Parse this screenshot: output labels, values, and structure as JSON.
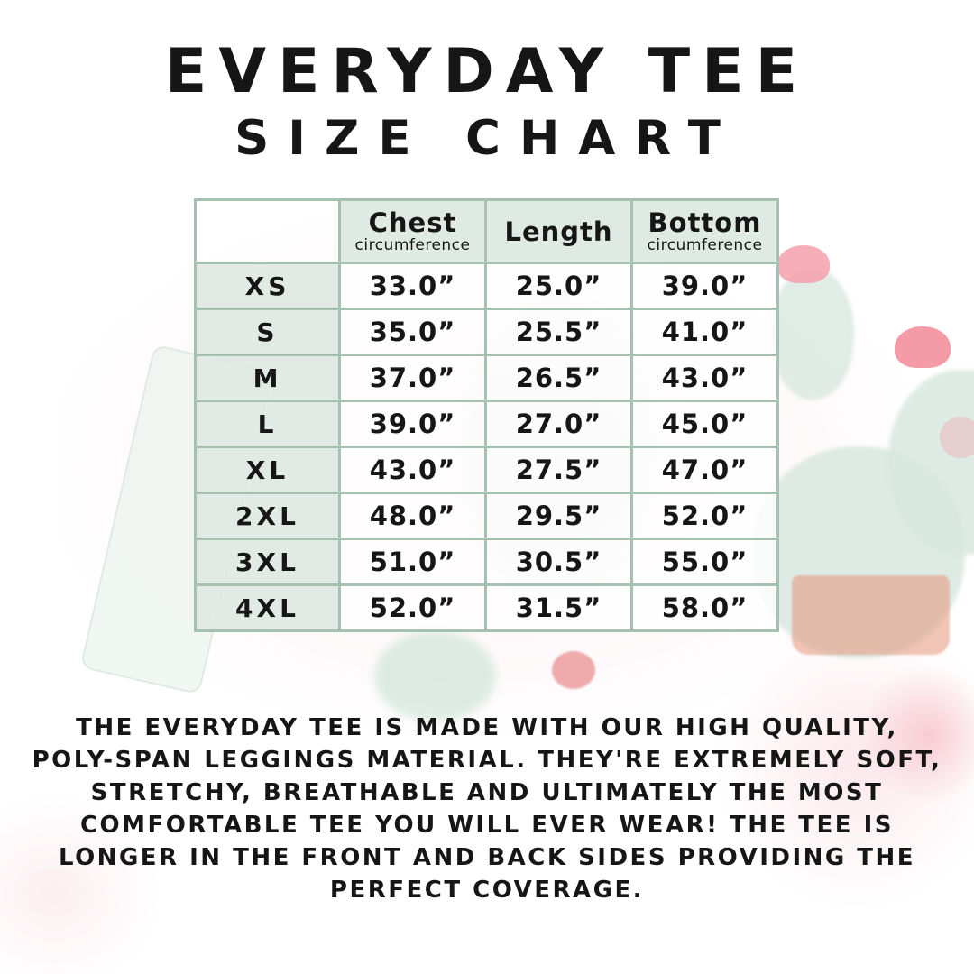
{
  "title": {
    "line1": "EVERYDAY TEE",
    "line2": "SIZE CHART"
  },
  "chart_data": {
    "type": "table",
    "title": "EVERYDAY TEE SIZE CHART",
    "columns": [
      {
        "label": "Chest",
        "sublabel": "circumference"
      },
      {
        "label": "Length",
        "sublabel": ""
      },
      {
        "label": "Bottom",
        "sublabel": "circumference"
      }
    ],
    "rows": [
      {
        "size": "XS",
        "chest": "33.0”",
        "length": "25.0”",
        "bottom": "39.0”"
      },
      {
        "size": "S",
        "chest": "35.0”",
        "length": "25.5”",
        "bottom": "41.0”"
      },
      {
        "size": "M",
        "chest": "37.0”",
        "length": "26.5”",
        "bottom": "43.0”"
      },
      {
        "size": "L",
        "chest": "39.0”",
        "length": "27.0”",
        "bottom": "45.0”"
      },
      {
        "size": "XL",
        "chest": "43.0”",
        "length": "27.5”",
        "bottom": "47.0”"
      },
      {
        "size": "2XL",
        "chest": "48.0”",
        "length": "29.5”",
        "bottom": "52.0”"
      },
      {
        "size": "3XL",
        "chest": "51.0”",
        "length": "30.5”",
        "bottom": "55.0”"
      },
      {
        "size": "4XL",
        "chest": "52.0”",
        "length": "31.5”",
        "bottom": "58.0”"
      }
    ]
  },
  "description": {
    "lines": [
      "THE EVERYDAY TEE IS MADE WITH OUR HIGH QUALITY,",
      "POLY-SPAN LEGGINGS MATERIAL. THEY'RE EXTREMELY SOFT,",
      "STRETCHY, BREATHABLE AND ULTIMATELY THE MOST",
      "COMFORTABLE TEE YOU WILL EVER WEAR! THE TEE IS",
      "LONGER IN THE FRONT AND BACK SIDES PROVIDING THE",
      "PERFECT COVERAGE."
    ]
  },
  "colors": {
    "table_border": "#a6c1b2",
    "header_cell_bg": "#dfe9e3",
    "size_cell_bg": "#dfe9e3",
    "data_cell_bg": "#ffffff",
    "text": "#161616",
    "watermark_green": "#d6e6dd",
    "watermark_pink": "#f8d5dc",
    "watermark_pot": "#e6967a"
  }
}
